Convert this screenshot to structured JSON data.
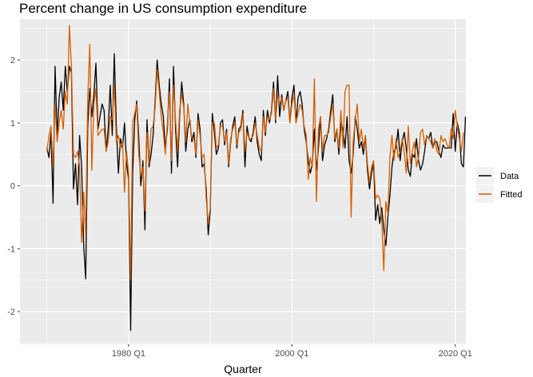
{
  "chart_data": {
    "type": "line",
    "title": "Percent change in US consumption expenditure",
    "xlabel": "Quarter",
    "ylabel": "",
    "xlim": [
      1966.7,
      2021.3
    ],
    "ylim": [
      -2.52,
      2.65
    ],
    "x_ticks": [
      {
        "value": 1980,
        "label": "1980 Q1"
      },
      {
        "value": 2000,
        "label": "2000 Q1"
      },
      {
        "value": 2020,
        "label": "2020 Q1"
      }
    ],
    "y_ticks": [
      {
        "value": -2,
        "label": "-2"
      },
      {
        "value": -1,
        "label": "-1"
      },
      {
        "value": 0,
        "label": "0"
      },
      {
        "value": 1,
        "label": "1"
      },
      {
        "value": 2,
        "label": "2"
      }
    ],
    "x_start": 1970.0,
    "x_step": 0.25,
    "legend_position": "right",
    "series": [
      {
        "name": "Data",
        "color": "#000000",
        "values": [
          0.6,
          0.45,
          0.85,
          -0.28,
          1.9,
          0.8,
          1.4,
          1.65,
          1.2,
          1.9,
          1.5,
          1.9,
          1.8,
          -0.05,
          0.35,
          -0.3,
          0.8,
          0.3,
          -0.95,
          -1.48,
          0.95,
          1.55,
          1.1,
          1.45,
          1.95,
          0.9,
          1.1,
          1.3,
          1.2,
          0.55,
          0.9,
          1.6,
          0.8,
          2.1,
          0.95,
          0.2,
          0.75,
          0.6,
          1.0,
          0.35,
          0.1,
          -2.3,
          0.2,
          1.05,
          1.35,
          0.75,
          0.0,
          0.4,
          -0.7,
          1.05,
          0.3,
          0.5,
          0.8,
          1.35,
          2.0,
          1.6,
          1.3,
          1.1,
          0.6,
          0.9,
          1.7,
          0.2,
          1.9,
          0.9,
          0.3,
          1.1,
          1.65,
          1.3,
          0.55,
          0.9,
          1.05,
          0.7,
          0.85,
          0.45,
          1.15,
          0.9,
          0.3,
          0.35,
          -0.05,
          -0.78,
          -0.4,
          1.15,
          0.85,
          0.5,
          0.6,
          1.0,
          1.05,
          0.65,
          0.9,
          0.3,
          0.7,
          0.95,
          1.1,
          0.6,
          0.9,
          0.95,
          1.2,
          0.3,
          0.95,
          0.75,
          0.7,
          0.85,
          1.1,
          0.7,
          0.5,
          0.4,
          1.2,
          0.8,
          1.2,
          1.0,
          1.2,
          1.65,
          1.0,
          1.75,
          1.1,
          1.45,
          1.2,
          1.35,
          1.5,
          1.0,
          1.4,
          1.6,
          1.0,
          1.4,
          1.5,
          1.3,
          0.9,
          0.7,
          0.4,
          0.2,
          0.35,
          0.9,
          0.25,
          0.6,
          1.1,
          0.4,
          0.65,
          0.75,
          0.9,
          1.2,
          1.45,
          0.7,
          0.9,
          0.5,
          1.0,
          0.9,
          0.6,
          1.1,
          0.4,
          0.2,
          0.5,
          1.1,
          0.9,
          0.6,
          0.7,
          0.5,
          0.8,
          0.25,
          -0.05,
          0.2,
          0.35,
          -0.55,
          -0.3,
          -0.6,
          -0.35,
          -0.7,
          -0.95,
          -0.5,
          -0.15,
          0.3,
          0.55,
          0.6,
          0.9,
          0.4,
          0.7,
          0.85,
          0.6,
          0.25,
          0.15,
          0.5,
          0.45,
          0.75,
          0.4,
          0.25,
          0.35,
          0.55,
          0.8,
          0.75,
          0.85,
          0.6,
          0.7,
          0.7,
          0.55,
          0.45,
          0.65,
          0.6,
          0.6,
          0.6,
          0.6,
          1.15,
          0.55,
          1.0,
          0.85,
          0.35,
          0.3,
          1.1
        ]
      },
      {
        "name": "Fitted",
        "color": "#d55e00",
        "values": [
          0.55,
          0.8,
          0.95,
          0.3,
          1.3,
          0.7,
          1.0,
          1.2,
          0.9,
          1.5,
          1.3,
          2.55,
          1.9,
          0.5,
          0.45,
          0.55,
          0.3,
          -0.9,
          -0.1,
          -0.8,
          1.4,
          2.25,
          0.25,
          1.3,
          1.55,
          0.8,
          0.85,
          0.9,
          0.9,
          0.55,
          0.7,
          1.1,
          1.05,
          1.6,
          0.7,
          0.8,
          0.6,
          0.7,
          -0.1,
          0.55,
          0.2,
          -1.5,
          1.0,
          1.15,
          1.3,
          0.5,
          0.15,
          0.3,
          -0.4,
          0.85,
          0.35,
          0.9,
          0.95,
          1.25,
          1.85,
          1.5,
          1.1,
          0.85,
          0.5,
          1.0,
          1.5,
          0.4,
          1.6,
          1.05,
          0.55,
          1.2,
          1.45,
          1.25,
          0.7,
          1.3,
          1.0,
          0.75,
          0.75,
          0.5,
          1.05,
          0.8,
          0.45,
          0.5,
          -0.2,
          -0.6,
          -0.35,
          1.0,
          1.0,
          0.6,
          0.65,
          0.95,
          0.95,
          0.7,
          0.85,
          0.35,
          0.75,
          0.9,
          1.0,
          0.65,
          0.85,
          0.9,
          1.15,
          0.55,
          0.85,
          0.75,
          0.75,
          0.8,
          1.0,
          0.8,
          0.6,
          0.55,
          1.1,
          0.85,
          1.1,
          1.05,
          1.15,
          1.55,
          1.05,
          1.45,
          1.3,
          1.4,
          1.2,
          1.35,
          1.4,
          1.0,
          1.3,
          1.45,
          1.0,
          1.15,
          1.3,
          1.2,
          0.95,
          0.8,
          0.1,
          0.45,
          0.3,
          1.7,
          -0.25,
          0.9,
          1.1,
          0.55,
          0.8,
          0.8,
          0.85,
          1.1,
          1.3,
          0.75,
          0.9,
          0.6,
          1.2,
          0.6,
          1.5,
          1.6,
          1.6,
          -0.5,
          0.7,
          1.05,
          1.3,
          0.7,
          0.9,
          0.6,
          0.8,
          0.35,
          0.05,
          0.3,
          0.4,
          -0.2,
          -0.15,
          -0.2,
          -0.55,
          -1.35,
          -0.25,
          -0.45,
          0.45,
          0.8,
          0.4,
          0.75,
          0.45,
          0.55,
          0.75,
          0.55,
          0.2,
          0.95,
          0.35,
          0.55,
          0.7,
          0.3,
          0.45,
          0.85,
          0.9,
          0.65,
          0.8,
          0.75,
          0.7,
          0.6,
          0.75,
          0.55,
          0.5,
          0.8,
          0.7,
          0.75,
          0.65,
          0.6,
          0.9,
          0.75,
          1.2,
          0.95,
          0.75,
          0.55,
          0.85
        ]
      }
    ]
  }
}
